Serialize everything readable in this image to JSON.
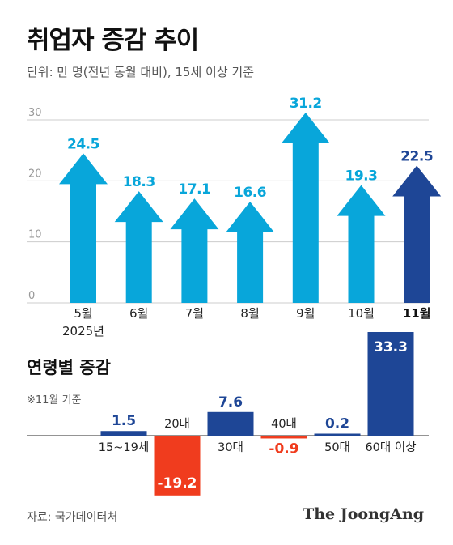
{
  "title": "취업자 증감 추이",
  "subtitle": "단위: 만 명(전년 동월 대비), 15세 이상 기준",
  "source": "자료: 국가데이터처",
  "logo": "The JoongAng",
  "colors": {
    "primary": "#08a6da",
    "highlight": "#1e4696",
    "negative": "#f03c1e",
    "grid": "#cccccc"
  },
  "chart_data": [
    {
      "type": "bar",
      "categories": [
        "5월",
        "6월",
        "7월",
        "8월",
        "9월",
        "10월",
        "11월"
      ],
      "category_sublabels": [
        "2025년",
        "",
        "",
        "",
        "",
        "",
        ""
      ],
      "values": [
        24.5,
        18.3,
        17.1,
        16.6,
        31.2,
        19.3,
        22.5
      ],
      "highlight_index": 6,
      "yticks": [
        0,
        10,
        20,
        30
      ],
      "ylim": [
        0,
        33
      ],
      "grid": true
    },
    {
      "type": "bar",
      "title": "연령별 증감",
      "note": "※11월 기준",
      "categories": [
        "15~19세",
        "20대",
        "30대",
        "40대",
        "50대",
        "60대 이상"
      ],
      "values": [
        1.5,
        -19.2,
        7.6,
        -0.9,
        0.2,
        33.3
      ],
      "value_labels": [
        "1.5",
        "-19.2",
        "7.6",
        "-0.9",
        "0.2",
        "33.3"
      ]
    }
  ]
}
